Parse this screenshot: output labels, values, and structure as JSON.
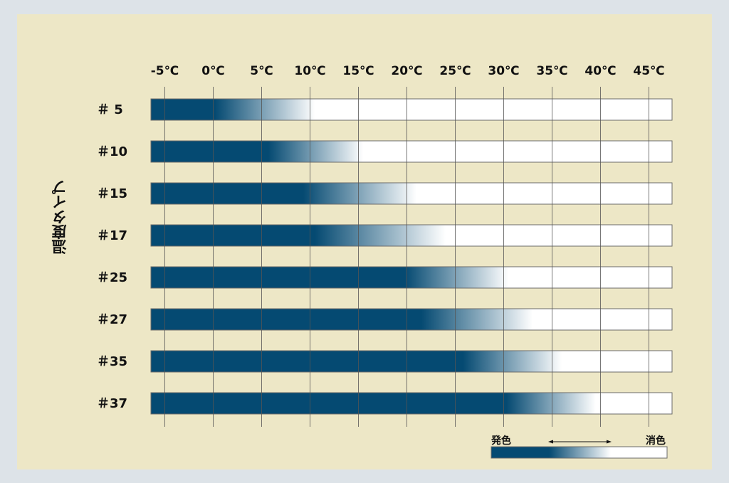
{
  "chart_data": {
    "type": "bar",
    "ylabel": "温度タイプ",
    "x_ticks": [
      "-5℃",
      "0℃",
      "5℃",
      "10℃",
      "15℃",
      "20℃",
      "25℃",
      "30℃",
      "35℃",
      "40℃",
      "45℃"
    ],
    "x_tick_values": [
      -5,
      0,
      5,
      10,
      15,
      20,
      25,
      30,
      35,
      40,
      45
    ],
    "xlim": [
      -8,
      45
    ],
    "grid": true,
    "series": [
      {
        "name": "＃ 5",
        "start": 0.2,
        "end": 10.5
      },
      {
        "name": "＃10",
        "start": 5.7,
        "end": 15.5
      },
      {
        "name": "＃15",
        "start": 9.3,
        "end": 21.0
      },
      {
        "name": "＃17",
        "start": 10.5,
        "end": 24.0
      },
      {
        "name": "＃25",
        "start": 19.8,
        "end": 30.5
      },
      {
        "name": "＃27",
        "start": 21.5,
        "end": 33.0
      },
      {
        "name": "＃35",
        "start": 25.8,
        "end": 36.0
      },
      {
        "name": "＃37",
        "start": 30.3,
        "end": 39.5
      }
    ],
    "legend": {
      "left_label": "発色",
      "right_label": "消色",
      "position": "bottom-right"
    },
    "colors": {
      "colored": "#054a72",
      "decolored": "#ffffff",
      "background": "#ede7c6",
      "frame": "#dde3e8",
      "grid": "#555555"
    }
  }
}
